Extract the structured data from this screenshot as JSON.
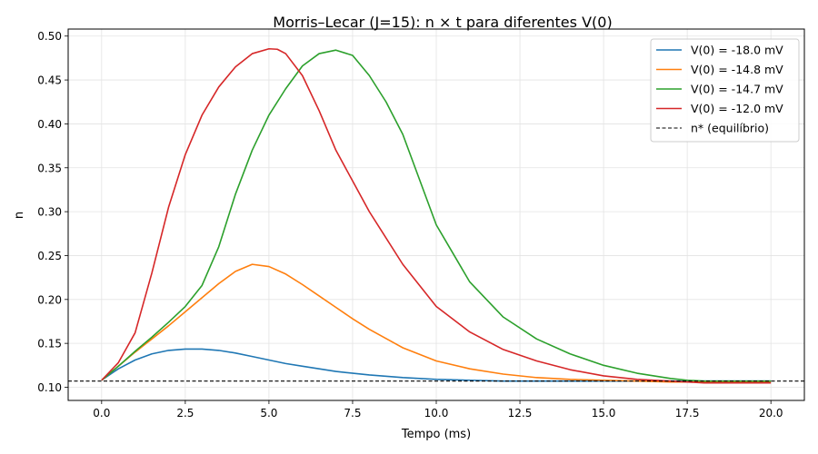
{
  "chart_data": {
    "type": "line",
    "title": "Morris–Lecar (J=15): n × t para diferentes V(0)",
    "xlabel": "Tempo (ms)",
    "ylabel": "n",
    "xlim": [
      -1.0,
      21.0
    ],
    "ylim": [
      0.085,
      0.508
    ],
    "xticks": [
      0.0,
      2.5,
      5.0,
      7.5,
      10.0,
      12.5,
      15.0,
      17.5,
      20.0
    ],
    "xtick_labels": [
      "0.0",
      "2.5",
      "5.0",
      "7.5",
      "10.0",
      "12.5",
      "15.0",
      "17.5",
      "20.0"
    ],
    "yticks": [
      0.1,
      0.15,
      0.2,
      0.25,
      0.3,
      0.35,
      0.4,
      0.45,
      0.5
    ],
    "ytick_labels": [
      "0.10",
      "0.15",
      "0.20",
      "0.25",
      "0.30",
      "0.35",
      "0.40",
      "0.45",
      "0.50"
    ],
    "grid": true,
    "legend_position": "top-right",
    "series": [
      {
        "name": "V(0) = -18.0 mV",
        "color": "#1f77b4",
        "style": "solid",
        "x": [
          0,
          0.5,
          1,
          1.5,
          2,
          2.5,
          3,
          3.5,
          4,
          4.5,
          5,
          5.5,
          6,
          7,
          8,
          9,
          10,
          11,
          12,
          13,
          14,
          15,
          16,
          17,
          18,
          19,
          20
        ],
        "y": [
          0.108,
          0.121,
          0.131,
          0.138,
          0.142,
          0.1435,
          0.1435,
          0.142,
          0.139,
          0.135,
          0.131,
          0.127,
          0.124,
          0.118,
          0.114,
          0.111,
          0.109,
          0.108,
          0.107,
          0.107,
          0.107,
          0.107,
          0.107,
          0.107,
          0.107,
          0.107,
          0.107
        ]
      },
      {
        "name": "V(0) = -14.8 mV",
        "color": "#ff7f0e",
        "style": "solid",
        "x": [
          0,
          0.5,
          1,
          1.5,
          2,
          2.5,
          3,
          3.5,
          4,
          4.5,
          5,
          5.5,
          6,
          6.5,
          7,
          7.5,
          8,
          9,
          10,
          11,
          12,
          13,
          14,
          15,
          16,
          17,
          18,
          19,
          20
        ],
        "y": [
          0.108,
          0.124,
          0.14,
          0.155,
          0.17,
          0.186,
          0.202,
          0.218,
          0.232,
          0.24,
          0.2375,
          0.229,
          0.217,
          0.204,
          0.191,
          0.178,
          0.166,
          0.145,
          0.13,
          0.121,
          0.115,
          0.111,
          0.109,
          0.108,
          0.107,
          0.106,
          0.106,
          0.106,
          0.106
        ]
      },
      {
        "name": "V(0) = -14.7 mV",
        "color": "#2ca02c",
        "style": "solid",
        "x": [
          0,
          0.5,
          1,
          1.5,
          2,
          2.5,
          3,
          3.5,
          4,
          4.5,
          5,
          5.5,
          6,
          6.5,
          7,
          7.5,
          8,
          8.5,
          9,
          10,
          11,
          12,
          13,
          14,
          15,
          16,
          17,
          17.5,
          18,
          19,
          20
        ],
        "y": [
          0.108,
          0.124,
          0.141,
          0.157,
          0.174,
          0.192,
          0.216,
          0.26,
          0.32,
          0.37,
          0.41,
          0.44,
          0.466,
          0.48,
          0.484,
          0.478,
          0.455,
          0.425,
          0.388,
          0.285,
          0.22,
          0.18,
          0.155,
          0.138,
          0.125,
          0.116,
          0.11,
          0.108,
          0.107,
          0.107,
          0.107
        ]
      },
      {
        "name": "V(0) = -12.0 mV",
        "color": "#d62728",
        "style": "solid",
        "x": [
          0,
          0.5,
          1,
          1.5,
          2,
          2.5,
          3,
          3.5,
          4,
          4.5,
          5,
          5.25,
          5.5,
          6,
          6.5,
          7,
          7.5,
          8,
          9,
          10,
          11,
          12,
          13,
          14,
          15,
          16,
          17,
          18,
          19,
          20
        ],
        "y": [
          0.108,
          0.128,
          0.162,
          0.23,
          0.305,
          0.365,
          0.41,
          0.442,
          0.465,
          0.48,
          0.4855,
          0.485,
          0.48,
          0.455,
          0.415,
          0.37,
          0.335,
          0.3,
          0.24,
          0.192,
          0.163,
          0.143,
          0.13,
          0.12,
          0.113,
          0.109,
          0.107,
          0.105,
          0.105,
          0.105
        ]
      },
      {
        "name": "n* (equilíbrio)",
        "color": "#000000",
        "style": "dashed",
        "type": "hline",
        "value": 0.107
      }
    ]
  }
}
